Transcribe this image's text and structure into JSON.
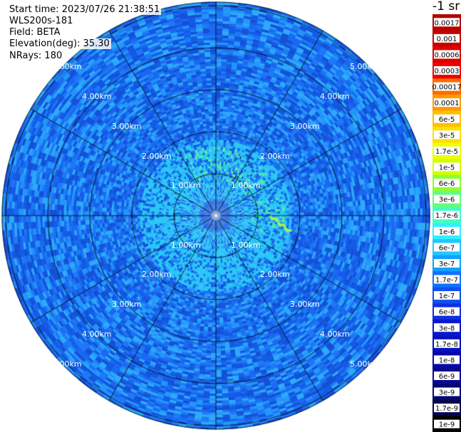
{
  "header": {
    "start_time": "Start time: 2023/07/26 21:38:51",
    "instrument": "WLS200s-181",
    "field": "Field: BETA",
    "elevation": "Elevation(deg): 35.30",
    "nrays": "NRays: 180"
  },
  "colorbar": {
    "title": "-1 sr",
    "labels": [
      "0.0017",
      "0.001",
      "0.0006",
      "0.0003",
      "0.00017",
      "0.0001",
      "6e-5",
      "3e-5",
      "1.7e-5",
      "1e-5",
      "6e-6",
      "3e-6",
      "1.7e-6",
      "1e-6",
      "6e-7",
      "3e-7",
      "1.7e-7",
      "1e-7",
      "6e-8",
      "3e-8",
      "1.7e-8",
      "1e-8",
      "6e-9",
      "3e-9",
      "1.7e-9",
      "1e-9"
    ],
    "colors": [
      "#b40000",
      "#c80000",
      "#e00000",
      "#f00000",
      "#ff6a00",
      "#ff9a00",
      "#ffbf00",
      "#ffe000",
      "#f0ff00",
      "#d0ff00",
      "#90ff30",
      "#60ff80",
      "#40ffc0",
      "#30f0ff",
      "#20c8ff",
      "#10a0ff",
      "#1070ff",
      "#1050f0",
      "#1030e0",
      "#0818d0",
      "#0810c0",
      "#0808a8",
      "#080890",
      "#060670",
      "#04044f",
      "#000000"
    ]
  },
  "chart_data": {
    "type": "heatmap",
    "projection": "polar PPI",
    "field": "BETA",
    "elevation_deg": 35.3,
    "n_rays": 180,
    "range_rings_km": [
      1.0,
      2.0,
      3.0,
      4.0,
      5.0
    ],
    "ring_labels": [
      "1.00km",
      "2.00km",
      "3.00km",
      "4.00km",
      "5.00km"
    ],
    "max_range_km": 5.9,
    "radial_lines_every_deg": 30,
    "color_scale": "log",
    "color_range": [
      1e-09,
      0.0017
    ],
    "typical_value": 1e-07,
    "near_range_values": [
      1e-06,
      6e-06
    ],
    "features": [
      "enhanced BETA (~3e-6 to 1e-5) near 1 km toward north and east",
      "lower BETA (~6e-8) at center"
    ]
  }
}
